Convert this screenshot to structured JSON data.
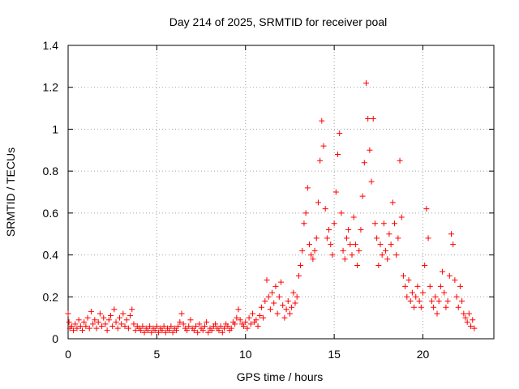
{
  "chart_data": {
    "type": "scatter",
    "title": "Day 214 of 2025, SRMTID for receiver poal",
    "xlabel": "GPS time / hours",
    "ylabel": "SRMTID / TECUs",
    "xlim": [
      0,
      24
    ],
    "ylim": [
      0,
      1.4
    ],
    "x_ticks": [
      0,
      5,
      10,
      15,
      20
    ],
    "x_tick_labels": [
      "0",
      "5",
      "10",
      "15",
      "20"
    ],
    "y_ticks": [
      0,
      0.2,
      0.4,
      0.6,
      0.8,
      1,
      1.2,
      1.4
    ],
    "y_tick_labels": [
      "0",
      "0.2",
      "0.4",
      "0.6",
      "0.8",
      "1",
      "1.2",
      "1.4"
    ],
    "grid": true,
    "marker": "+",
    "series_color": "#ff0000",
    "series": [
      {
        "name": "SRMTID",
        "points": [
          [
            0.0,
            0.12
          ],
          [
            0.05,
            0.08
          ],
          [
            0.1,
            0.05
          ],
          [
            0.2,
            0.06
          ],
          [
            0.3,
            0.04
          ],
          [
            0.4,
            0.07
          ],
          [
            0.5,
            0.05
          ],
          [
            0.6,
            0.09
          ],
          [
            0.7,
            0.06
          ],
          [
            0.8,
            0.04
          ],
          [
            0.9,
            0.08
          ],
          [
            1.0,
            0.06
          ],
          [
            1.1,
            0.1
          ],
          [
            1.2,
            0.05
          ],
          [
            1.3,
            0.13
          ],
          [
            1.4,
            0.07
          ],
          [
            1.5,
            0.09
          ],
          [
            1.6,
            0.05
          ],
          [
            1.7,
            0.08
          ],
          [
            1.8,
            0.12
          ],
          [
            1.9,
            0.06
          ],
          [
            2.0,
            0.1
          ],
          [
            2.1,
            0.07
          ],
          [
            2.2,
            0.04
          ],
          [
            2.3,
            0.09
          ],
          [
            2.4,
            0.11
          ],
          [
            2.5,
            0.06
          ],
          [
            2.6,
            0.14
          ],
          [
            2.7,
            0.08
          ],
          [
            2.8,
            0.05
          ],
          [
            2.9,
            0.1
          ],
          [
            3.0,
            0.07
          ],
          [
            3.1,
            0.12
          ],
          [
            3.2,
            0.06
          ],
          [
            3.3,
            0.09
          ],
          [
            3.4,
            0.05
          ],
          [
            3.5,
            0.11
          ],
          [
            3.6,
            0.14
          ],
          [
            3.7,
            0.07
          ],
          [
            3.8,
            0.04
          ],
          [
            3.9,
            0.06
          ],
          [
            4.0,
            0.05
          ],
          [
            4.1,
            0.04
          ],
          [
            4.2,
            0.06
          ],
          [
            4.3,
            0.03
          ],
          [
            4.4,
            0.05
          ],
          [
            4.5,
            0.04
          ],
          [
            4.6,
            0.06
          ],
          [
            4.7,
            0.03
          ],
          [
            4.8,
            0.05
          ],
          [
            4.9,
            0.04
          ],
          [
            5.0,
            0.06
          ],
          [
            5.1,
            0.03
          ],
          [
            5.2,
            0.05
          ],
          [
            5.3,
            0.04
          ],
          [
            5.4,
            0.06
          ],
          [
            5.5,
            0.03
          ],
          [
            5.6,
            0.05
          ],
          [
            5.7,
            0.04
          ],
          [
            5.8,
            0.06
          ],
          [
            5.9,
            0.03
          ],
          [
            6.0,
            0.05
          ],
          [
            6.1,
            0.04
          ],
          [
            6.2,
            0.06
          ],
          [
            6.3,
            0.08
          ],
          [
            6.4,
            0.12
          ],
          [
            6.5,
            0.07
          ],
          [
            6.6,
            0.05
          ],
          [
            6.7,
            0.04
          ],
          [
            6.8,
            0.06
          ],
          [
            6.9,
            0.09
          ],
          [
            7.0,
            0.05
          ],
          [
            7.1,
            0.04
          ],
          [
            7.2,
            0.06
          ],
          [
            7.3,
            0.03
          ],
          [
            7.4,
            0.07
          ],
          [
            7.5,
            0.05
          ],
          [
            7.6,
            0.04
          ],
          [
            7.7,
            0.06
          ],
          [
            7.8,
            0.08
          ],
          [
            7.9,
            0.03
          ],
          [
            8.0,
            0.05
          ],
          [
            8.1,
            0.04
          ],
          [
            8.2,
            0.06
          ],
          [
            8.3,
            0.07
          ],
          [
            8.4,
            0.05
          ],
          [
            8.5,
            0.04
          ],
          [
            8.6,
            0.06
          ],
          [
            8.7,
            0.03
          ],
          [
            8.8,
            0.05
          ],
          [
            8.9,
            0.07
          ],
          [
            9.0,
            0.06
          ],
          [
            9.1,
            0.04
          ],
          [
            9.2,
            0.05
          ],
          [
            9.3,
            0.08
          ],
          [
            9.4,
            0.07
          ],
          [
            9.5,
            0.1
          ],
          [
            9.6,
            0.14
          ],
          [
            9.7,
            0.09
          ],
          [
            9.8,
            0.07
          ],
          [
            9.9,
            0.06
          ],
          [
            10.0,
            0.08
          ],
          [
            10.1,
            0.05
          ],
          [
            10.2,
            0.1
          ],
          [
            10.3,
            0.07
          ],
          [
            10.4,
            0.12
          ],
          [
            10.5,
            0.08
          ],
          [
            10.6,
            0.09
          ],
          [
            10.7,
            0.06
          ],
          [
            10.8,
            0.11
          ],
          [
            10.9,
            0.15
          ],
          [
            11.0,
            0.1
          ],
          [
            11.1,
            0.18
          ],
          [
            11.2,
            0.28
          ],
          [
            11.3,
            0.2
          ],
          [
            11.4,
            0.14
          ],
          [
            11.5,
            0.22
          ],
          [
            11.6,
            0.17
          ],
          [
            11.7,
            0.25
          ],
          [
            11.8,
            0.12
          ],
          [
            11.9,
            0.2
          ],
          [
            12.0,
            0.27
          ],
          [
            12.1,
            0.16
          ],
          [
            12.2,
            0.1
          ],
          [
            12.3,
            0.14
          ],
          [
            12.4,
            0.18
          ],
          [
            12.5,
            0.12
          ],
          [
            12.6,
            0.15
          ],
          [
            12.7,
            0.22
          ],
          [
            12.8,
            0.17
          ],
          [
            12.9,
            0.2
          ],
          [
            13.0,
            0.3
          ],
          [
            13.1,
            0.35
          ],
          [
            13.2,
            0.42
          ],
          [
            13.3,
            0.55
          ],
          [
            13.4,
            0.6
          ],
          [
            13.5,
            0.72
          ],
          [
            13.6,
            0.45
          ],
          [
            13.7,
            0.4
          ],
          [
            13.8,
            0.38
          ],
          [
            13.9,
            0.42
          ],
          [
            14.0,
            0.48
          ],
          [
            14.1,
            0.65
          ],
          [
            14.2,
            0.85
          ],
          [
            14.3,
            1.04
          ],
          [
            14.4,
            0.92
          ],
          [
            14.5,
            0.62
          ],
          [
            14.6,
            0.48
          ],
          [
            14.7,
            0.52
          ],
          [
            14.8,
            0.45
          ],
          [
            14.9,
            0.4
          ],
          [
            15.0,
            0.55
          ],
          [
            15.1,
            0.7
          ],
          [
            15.2,
            0.88
          ],
          [
            15.3,
            0.98
          ],
          [
            15.4,
            0.6
          ],
          [
            15.5,
            0.42
          ],
          [
            15.6,
            0.38
          ],
          [
            15.7,
            0.48
          ],
          [
            15.8,
            0.52
          ],
          [
            15.9,
            0.45
          ],
          [
            16.0,
            0.4
          ],
          [
            16.1,
            0.58
          ],
          [
            16.2,
            0.45
          ],
          [
            16.3,
            0.35
          ],
          [
            16.4,
            0.42
          ],
          [
            16.5,
            0.52
          ],
          [
            16.6,
            0.68
          ],
          [
            16.7,
            0.84
          ],
          [
            16.8,
            1.22
          ],
          [
            16.9,
            1.05
          ],
          [
            17.0,
            0.9
          ],
          [
            17.1,
            0.75
          ],
          [
            17.2,
            1.05
          ],
          [
            17.3,
            0.55
          ],
          [
            17.4,
            0.48
          ],
          [
            17.5,
            0.35
          ],
          [
            17.6,
            0.45
          ],
          [
            17.7,
            0.4
          ],
          [
            17.8,
            0.55
          ],
          [
            17.9,
            0.42
          ],
          [
            18.0,
            0.38
          ],
          [
            18.1,
            0.5
          ],
          [
            18.2,
            0.45
          ],
          [
            18.3,
            0.65
          ],
          [
            18.4,
            0.55
          ],
          [
            18.5,
            0.4
          ],
          [
            18.6,
            0.48
          ],
          [
            18.7,
            0.85
          ],
          [
            18.8,
            0.58
          ],
          [
            18.9,
            0.3
          ],
          [
            19.0,
            0.25
          ],
          [
            19.1,
            0.2
          ],
          [
            19.2,
            0.28
          ],
          [
            19.3,
            0.18
          ],
          [
            19.4,
            0.22
          ],
          [
            19.5,
            0.15
          ],
          [
            19.6,
            0.2
          ],
          [
            19.7,
            0.25
          ],
          [
            19.8,
            0.18
          ],
          [
            19.9,
            0.15
          ],
          [
            20.0,
            0.22
          ],
          [
            20.1,
            0.35
          ],
          [
            20.2,
            0.62
          ],
          [
            20.3,
            0.48
          ],
          [
            20.4,
            0.25
          ],
          [
            20.5,
            0.18
          ],
          [
            20.6,
            0.15
          ],
          [
            20.7,
            0.2
          ],
          [
            20.8,
            0.12
          ],
          [
            20.9,
            0.18
          ],
          [
            21.0,
            0.25
          ],
          [
            21.1,
            0.32
          ],
          [
            21.2,
            0.22
          ],
          [
            21.3,
            0.15
          ],
          [
            21.4,
            0.18
          ],
          [
            21.5,
            0.3
          ],
          [
            21.6,
            0.5
          ],
          [
            21.7,
            0.45
          ],
          [
            21.8,
            0.28
          ],
          [
            21.9,
            0.2
          ],
          [
            22.0,
            0.15
          ],
          [
            22.1,
            0.25
          ],
          [
            22.2,
            0.18
          ],
          [
            22.3,
            0.12
          ],
          [
            22.4,
            0.1
          ],
          [
            22.5,
            0.08
          ],
          [
            22.6,
            0.12
          ],
          [
            22.7,
            0.06
          ],
          [
            22.8,
            0.09
          ],
          [
            22.9,
            0.05
          ]
        ]
      }
    ]
  }
}
